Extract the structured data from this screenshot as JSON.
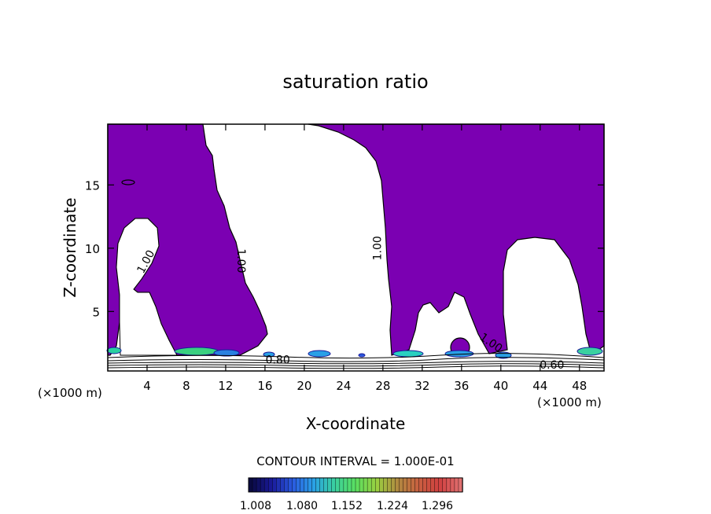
{
  "chart_data": {
    "type": "contour",
    "title": "saturation ratio",
    "xlabel": "X-coordinate",
    "ylabel": "Z-coordinate",
    "x_unit_left": "(×1000 m)",
    "x_unit_right": "(×1000 m)",
    "xlim": [
      0,
      50.5
    ],
    "ylim": [
      0.3,
      19.8
    ],
    "xticks": [
      4,
      8,
      12,
      16,
      20,
      24,
      28,
      32,
      36,
      40,
      44,
      48
    ],
    "yticks": [
      5,
      10,
      15
    ],
    "fill_color": "#7b00b2",
    "contour_labels": [
      {
        "text": "1.00",
        "x": 4.2,
        "y": 8.8,
        "rotate": -62
      },
      {
        "text": "1.00",
        "x": 13.2,
        "y": 9.0,
        "rotate": 90
      },
      {
        "text": "1.00",
        "x": 27.8,
        "y": 10.0,
        "rotate": -90
      },
      {
        "text": "1.00",
        "x": 38.8,
        "y": 2.3,
        "rotate": 35
      },
      {
        "text": "0.80",
        "x": 17.3,
        "y": 0.9,
        "rotate": 0
      },
      {
        "text": "0.60",
        "x": 45.2,
        "y": 0.5,
        "rotate": 0
      }
    ],
    "contour_interval_label": "CONTOUR INTERVAL = 1.000E-01",
    "colorbar": {
      "ticks": [
        "1.008",
        "1.080",
        "1.152",
        "1.224",
        "1.296"
      ],
      "colors": [
        "#0a0a40",
        "#1a1a9a",
        "#2a5adf",
        "#2aa0e6",
        "#3ad0a0",
        "#5ae060",
        "#9ad040",
        "#b08a40",
        "#c86040",
        "#d04040",
        "#e07070"
      ]
    }
  }
}
